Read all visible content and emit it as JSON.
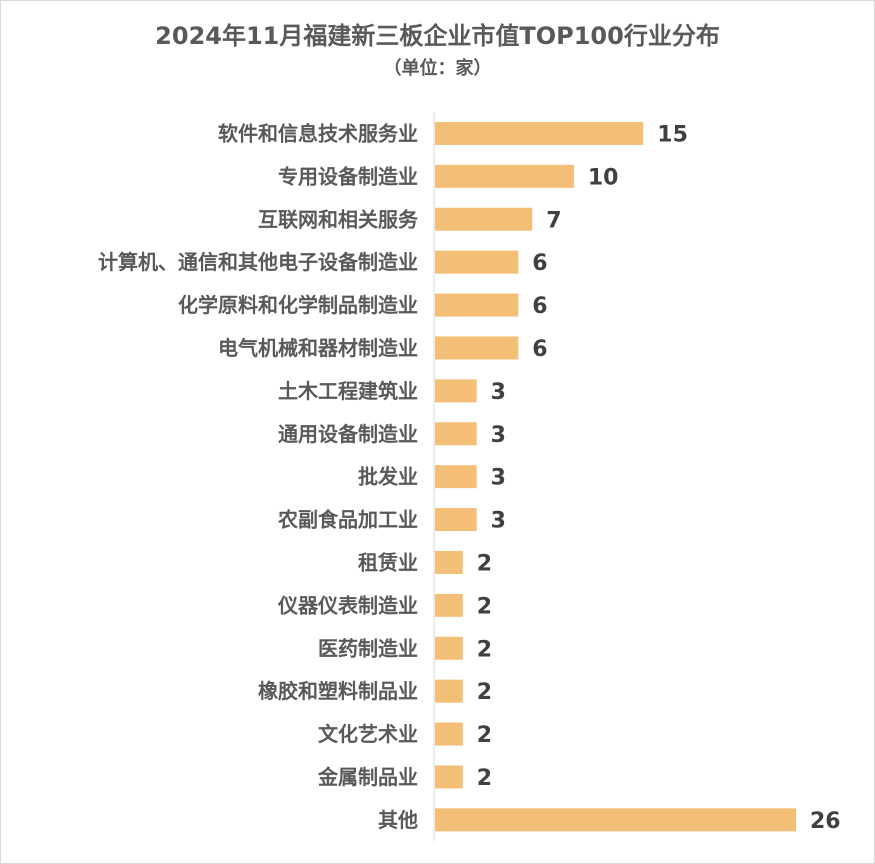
{
  "chart_data": {
    "type": "bar",
    "orientation": "horizontal",
    "title": "2024年11月福建新三板企业市值TOP100行业分布",
    "subtitle": "（单位：家）",
    "categories": [
      "软件和信息技术服务业",
      "专用设备制造业",
      "互联网和相关服务",
      "计算机、通信和其他电子设备制造业",
      "化学原料和化学制品制造业",
      "电气机械和器材制造业",
      "土木工程建筑业",
      "通用设备制造业",
      "批发业",
      "农副食品加工业",
      "租赁业",
      "仪器仪表制造业",
      "医药制造业",
      "橡胶和塑料制品业",
      "文化艺术业",
      "金属制品业",
      "其他"
    ],
    "values": [
      15,
      10,
      7,
      6,
      6,
      6,
      3,
      3,
      3,
      3,
      2,
      2,
      2,
      2,
      2,
      2,
      26
    ],
    "xlim": [
      0,
      26
    ],
    "grid": false,
    "legend": "none",
    "bar_color": "#F3BE76",
    "axis_color": "#d9d9d9"
  }
}
